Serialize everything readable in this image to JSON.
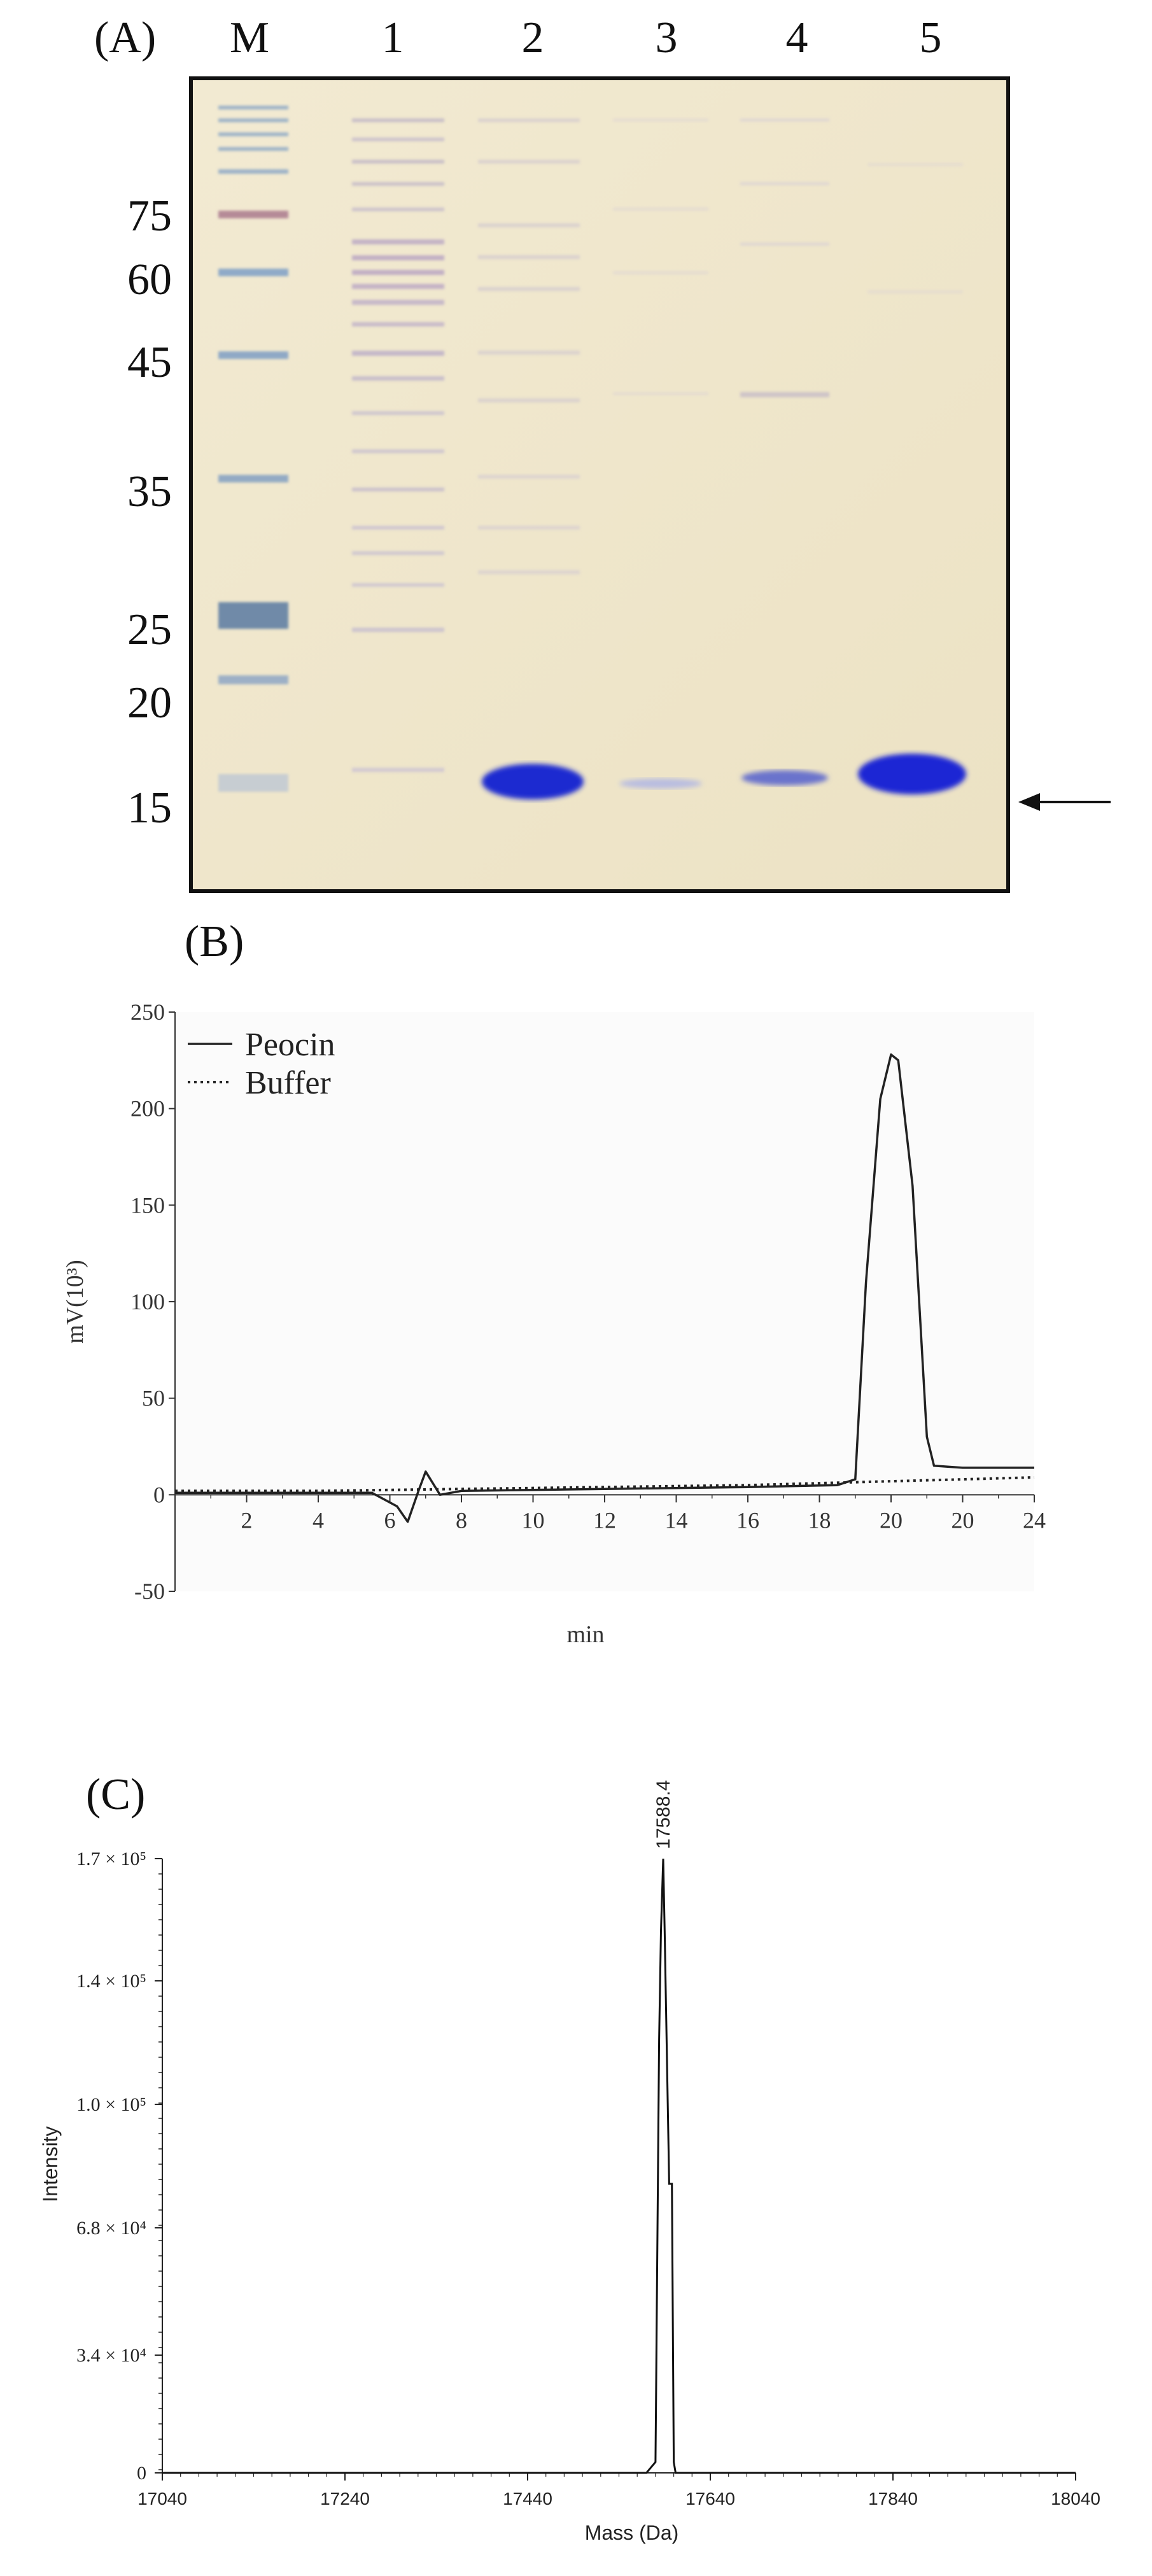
{
  "panel_a": {
    "label": "(A)",
    "lanes": [
      "M",
      "1",
      "2",
      "3",
      "4",
      "5"
    ],
    "markers": [
      "75",
      "60",
      "45",
      "35",
      "25",
      "20",
      "15"
    ]
  },
  "panel_b": {
    "label": "(B)",
    "chart_data": {
      "type": "line",
      "ylabel": "mV(10³)",
      "xlabel": "min",
      "y_ticks": [
        "250",
        "200",
        "150",
        "100",
        "50",
        "0",
        "-50"
      ],
      "x_ticks": [
        "2",
        "4",
        "6",
        "8",
        "10",
        "12",
        "14",
        "16",
        "18",
        "20",
        "20",
        "24"
      ],
      "ylim": [
        -50,
        250
      ],
      "xlim": [
        0,
        24
      ],
      "legend_position": "top-left",
      "series": [
        {
          "name": "Peocin",
          "style": "solid",
          "x": [
            0,
            5.5,
            6.2,
            6.5,
            6.8,
            7.0,
            7.4,
            8.0,
            12,
            16,
            18.5,
            19.0,
            19.3,
            19.7,
            20.0,
            20.2,
            20.6,
            21.0,
            21.2,
            22,
            24
          ],
          "y": [
            1,
            1,
            -6,
            -14,
            2,
            12,
            0,
            2,
            3,
            4,
            5,
            8,
            110,
            205,
            228,
            225,
            160,
            30,
            15,
            14,
            14
          ]
        },
        {
          "name": "Buffer",
          "style": "dotted",
          "x": [
            0,
            4,
            8,
            12,
            16,
            18,
            20,
            22,
            24
          ],
          "y": [
            2,
            2,
            3,
            4,
            5,
            6,
            7,
            8,
            9
          ]
        }
      ]
    }
  },
  "panel_c": {
    "label": "(C)",
    "chart_data": {
      "type": "line",
      "ylabel": "Intensity",
      "xlabel": "Mass (Da)",
      "peak_label": "17588.4",
      "y_ticks": [
        "1.7 × 10⁵",
        "1.4 × 10⁵",
        "1.0 × 10⁵",
        "6.8 × 10⁴",
        "3.4 × 10⁴",
        "0"
      ],
      "x_ticks": [
        "17040",
        "17240",
        "17440",
        "17640",
        "17840",
        "18040"
      ],
      "xlim": [
        17040,
        18040
      ],
      "ylim": [
        0,
        170000
      ],
      "series": [
        {
          "name": "",
          "x": [
            17040,
            17570,
            17580,
            17584,
            17586,
            17588.4,
            17590,
            17595,
            17598,
            17600,
            17602,
            18040
          ],
          "y": [
            0,
            0,
            3000,
            120000,
            150000,
            170000,
            150000,
            80000,
            80000,
            3000,
            0,
            0
          ]
        }
      ]
    }
  }
}
